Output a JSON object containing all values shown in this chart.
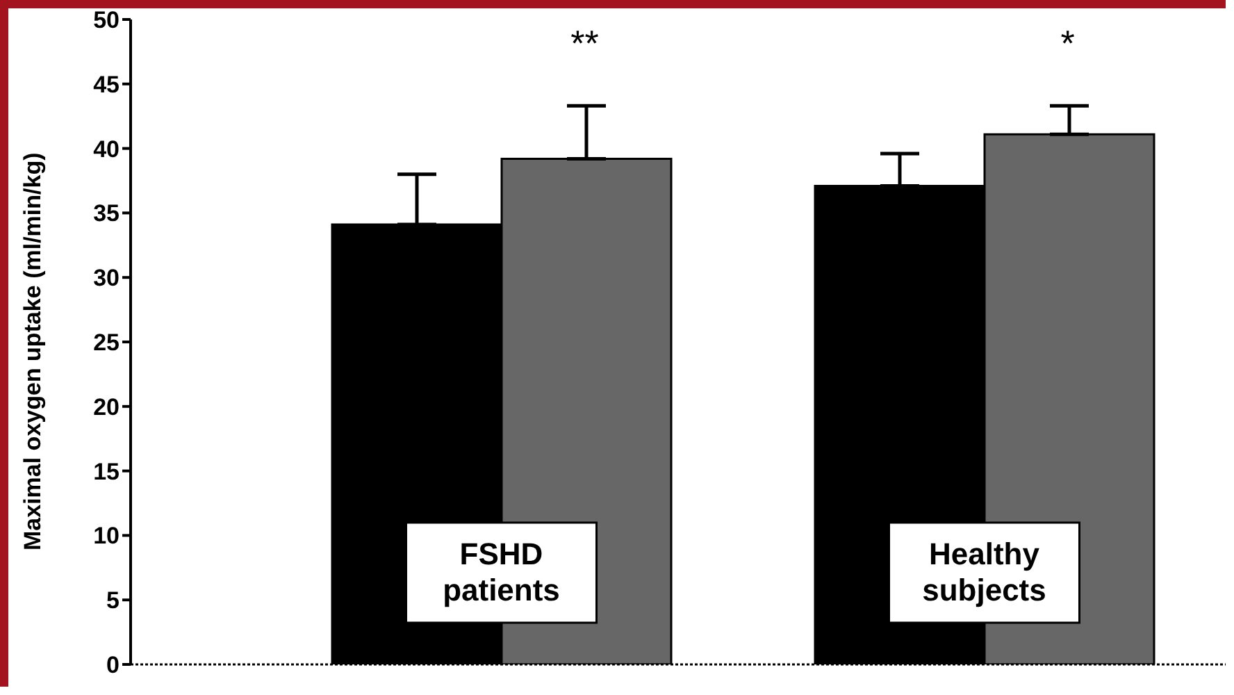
{
  "chart_data": {
    "type": "bar",
    "ylabel": "Maximal oxygen uptake (ml/min/kg)",
    "categories": [
      "FSHD patients",
      "Healthy subjects"
    ],
    "series": [
      {
        "color": "#000000",
        "values": [
          34.1,
          37.1
        ],
        "errors": [
          [
            34.1,
            38.0
          ],
          [
            37.1,
            39.6
          ]
        ]
      },
      {
        "color": "#676767",
        "values": [
          39.2,
          41.1
        ],
        "errors": [
          [
            39.2,
            43.3
          ],
          [
            41.1,
            43.3
          ]
        ]
      }
    ],
    "ylim": [
      0,
      50
    ],
    "yticks": [
      0,
      5,
      10,
      15,
      20,
      25,
      30,
      35,
      40,
      45,
      50
    ],
    "grid": false,
    "legend": false,
    "annotations": [
      "**",
      "*"
    ]
  }
}
